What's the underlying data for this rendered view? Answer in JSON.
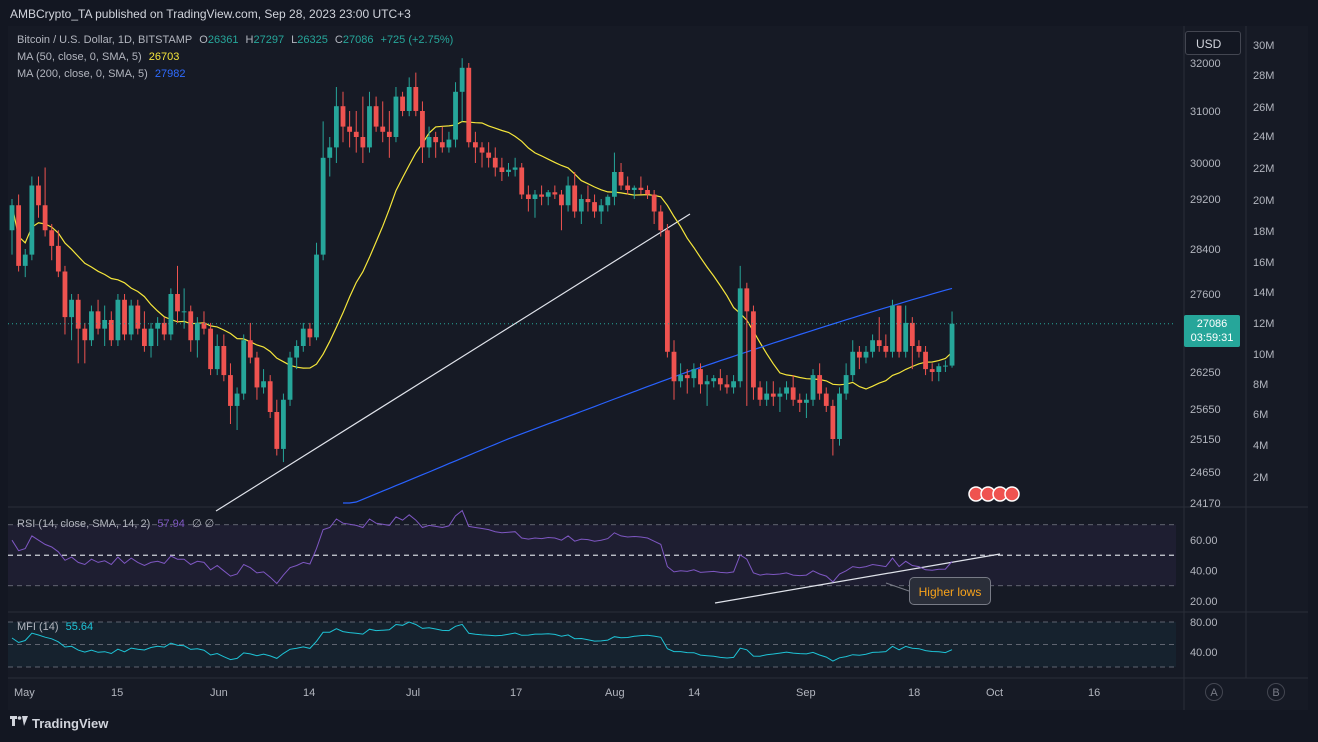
{
  "header": {
    "publisher": "AMBCrypto_TA published on TradingView.com, Sep 28, 2023 23:00 UTC+3"
  },
  "symbol": {
    "name": "Bitcoin / U.S. Dollar, 1D, BITSTAMP",
    "open_label": "O",
    "open": "26361",
    "high_label": "H",
    "high": "27297",
    "low_label": "L",
    "low": "26325",
    "close_label": "C",
    "close": "27086",
    "change": "+725 (+2.75%)"
  },
  "indicators": {
    "ma50": {
      "label": "MA (50, close, 0, SMA, 5)",
      "value": "26703",
      "color": "#f5e63b"
    },
    "ma200": {
      "label": "MA (200, close, 0, SMA, 5)",
      "value": "27982",
      "color": "#2962ff"
    },
    "rsi": {
      "label": "RSI (14, close, SMA, 14, 2)",
      "value": "57.94",
      "extra": "∅ ∅",
      "color": "#7e57c2"
    },
    "mfi": {
      "label": "MFI (14)",
      "value": "55.64",
      "color": "#1ec3d6"
    }
  },
  "currency_button": "USD",
  "price_tag": {
    "price": "27086",
    "countdown": "03:59:31"
  },
  "annotation": {
    "text": "Higher lows"
  },
  "axis_buttons": {
    "a": "A",
    "b": "B"
  },
  "brand": "TradingView",
  "colors": {
    "up": "#26a69a",
    "down": "#ef5350",
    "bg": "#161a25",
    "trendline": "#ffffff"
  },
  "chart_data": {
    "type": "candlestick",
    "price_axis": [
      "32000",
      "31000",
      "30000",
      "29200",
      "28400",
      "27600",
      "26250",
      "25650",
      "25150",
      "24650",
      "24170"
    ],
    "volume_axis": [
      "30M",
      "28M",
      "26M",
      "24M",
      "22M",
      "20M",
      "18M",
      "16M",
      "14M",
      "12M",
      "10M",
      "8M",
      "6M",
      "4M",
      "2M"
    ],
    "rsi_axis": [
      "60.00",
      "40.00",
      "20.00"
    ],
    "mfi_axis": [
      "80.00",
      "40.00"
    ],
    "x_labels": [
      "May",
      "15",
      "Jun",
      "14",
      "Jul",
      "17",
      "Aug",
      "14",
      "Sep",
      "18",
      "Oct",
      "16"
    ],
    "ohlc_series": [
      [
        28700,
        29200,
        28300,
        29100
      ],
      [
        29100,
        29300,
        28000,
        28100
      ],
      [
        28100,
        28400,
        27900,
        28300
      ],
      [
        28300,
        29700,
        28200,
        29500
      ],
      [
        29500,
        29700,
        28900,
        29100
      ],
      [
        29100,
        29900,
        28600,
        28700
      ],
      [
        28700,
        28800,
        28200,
        28450
      ],
      [
        28450,
        28700,
        27900,
        28000
      ],
      [
        28000,
        28100,
        26900,
        27200
      ],
      [
        27200,
        27600,
        26800,
        27500
      ],
      [
        27500,
        27600,
        26400,
        27000
      ],
      [
        27000,
        27100,
        26400,
        26800
      ],
      [
        26800,
        27400,
        26700,
        27300
      ],
      [
        27300,
        27500,
        26900,
        27000
      ],
      [
        27000,
        27400,
        26700,
        27150
      ],
      [
        27150,
        27300,
        26700,
        26800
      ],
      [
        26800,
        27600,
        26700,
        27500
      ],
      [
        27500,
        27600,
        26800,
        26900
      ],
      [
        26900,
        27500,
        26800,
        27400
      ],
      [
        27400,
        27500,
        26900,
        27000
      ],
      [
        27000,
        27300,
        26600,
        26700
      ],
      [
        26700,
        27100,
        26500,
        27000
      ],
      [
        27000,
        27200,
        26700,
        27100
      ],
      [
        27100,
        27200,
        26800,
        26900
      ],
      [
        26900,
        27700,
        26800,
        27600
      ],
      [
        27600,
        28100,
        27100,
        27300
      ],
      [
        27300,
        27700,
        27000,
        27300
      ],
      [
        27300,
        27400,
        26600,
        26800
      ],
      [
        26800,
        27200,
        26500,
        27100
      ],
      [
        27100,
        27300,
        26900,
        27000
      ],
      [
        27000,
        27100,
        26200,
        26300
      ],
      [
        26300,
        26900,
        26200,
        26700
      ],
      [
        26700,
        26900,
        26100,
        26200
      ],
      [
        26200,
        26400,
        25400,
        25700
      ],
      [
        25700,
        26000,
        25300,
        25900
      ],
      [
        25900,
        26900,
        25800,
        26800
      ],
      [
        26800,
        27100,
        26400,
        26500
      ],
      [
        26500,
        26600,
        25800,
        26000
      ],
      [
        26000,
        26300,
        25900,
        26100
      ],
      [
        26100,
        26200,
        25500,
        25600
      ],
      [
        25600,
        25800,
        24900,
        25000
      ],
      [
        25000,
        25900,
        24800,
        25800
      ],
      [
        25800,
        26600,
        25700,
        26500
      ],
      [
        26500,
        26800,
        26300,
        26700
      ],
      [
        26700,
        27100,
        26600,
        27000
      ],
      [
        27000,
        27100,
        26700,
        26850
      ],
      [
        26850,
        28500,
        26800,
        28300
      ],
      [
        28300,
        30800,
        28200,
        30100
      ],
      [
        30100,
        30500,
        29700,
        30300
      ],
      [
        30300,
        31500,
        30000,
        31100
      ],
      [
        31100,
        31400,
        30400,
        30700
      ],
      [
        30700,
        31000,
        30300,
        30600
      ],
      [
        30600,
        31000,
        30200,
        30500
      ],
      [
        30500,
        31300,
        30000,
        30300
      ],
      [
        30300,
        31400,
        30200,
        31100
      ],
      [
        31100,
        31300,
        30600,
        30700
      ],
      [
        30700,
        31200,
        30400,
        30600
      ],
      [
        30600,
        31000,
        30100,
        30500
      ],
      [
        30500,
        31500,
        30400,
        31300
      ],
      [
        31300,
        31400,
        30900,
        31000
      ],
      [
        31000,
        31700,
        30900,
        31500
      ],
      [
        31500,
        31800,
        30900,
        31000
      ],
      [
        31000,
        31200,
        30000,
        30300
      ],
      [
        30300,
        30700,
        30100,
        30500
      ],
      [
        30500,
        30600,
        30100,
        30400
      ],
      [
        30400,
        30700,
        30200,
        30300
      ],
      [
        30300,
        30600,
        30200,
        30450
      ],
      [
        30450,
        31600,
        30300,
        31400
      ],
      [
        31400,
        32100,
        30800,
        31900
      ],
      [
        31900,
        32000,
        30300,
        30400
      ],
      [
        30400,
        30600,
        30000,
        30300
      ],
      [
        30300,
        30400,
        29900,
        30200
      ],
      [
        30200,
        30400,
        29900,
        30100
      ],
      [
        30100,
        30300,
        29700,
        29900
      ],
      [
        29900,
        30100,
        29600,
        29800
      ],
      [
        29800,
        30000,
        29700,
        29850
      ],
      [
        29850,
        30100,
        29700,
        29900
      ],
      [
        29900,
        30000,
        29200,
        29300
      ],
      [
        29300,
        29500,
        29000,
        29200
      ],
      [
        29200,
        29400,
        28900,
        29300
      ],
      [
        29300,
        29500,
        29100,
        29250
      ],
      [
        29250,
        29400,
        29100,
        29350
      ],
      [
        29350,
        29500,
        29200,
        29300
      ],
      [
        29300,
        29400,
        28700,
        29100
      ],
      [
        29100,
        29700,
        29000,
        29500
      ],
      [
        29500,
        29800,
        28900,
        29000
      ],
      [
        29000,
        29300,
        28800,
        29200
      ],
      [
        29200,
        29500,
        29000,
        29150
      ],
      [
        29150,
        29300,
        28900,
        29000
      ],
      [
        29000,
        29200,
        28800,
        29100
      ],
      [
        29100,
        29300,
        29000,
        29250
      ],
      [
        29250,
        30200,
        29100,
        29800
      ],
      [
        29800,
        30000,
        29400,
        29500
      ],
      [
        29500,
        29700,
        29300,
        29400
      ],
      [
        29400,
        29500,
        29200,
        29450
      ],
      [
        29450,
        29700,
        29300,
        29400
      ],
      [
        29400,
        29500,
        29200,
        29300
      ],
      [
        29300,
        29400,
        28800,
        29000
      ],
      [
        29000,
        29100,
        28600,
        28700
      ],
      [
        28700,
        28800,
        26500,
        26600
      ],
      [
        26600,
        26800,
        25800,
        26100
      ],
      [
        26100,
        26400,
        26000,
        26200
      ],
      [
        26200,
        26300,
        25900,
        26150
      ],
      [
        26150,
        26400,
        26000,
        26300
      ],
      [
        26300,
        26400,
        25900,
        26050
      ],
      [
        26050,
        26200,
        25700,
        26100
      ],
      [
        26100,
        26200,
        26000,
        26150
      ],
      [
        26150,
        26300,
        25950,
        26050
      ],
      [
        26050,
        26200,
        25900,
        26000
      ],
      [
        26000,
        26200,
        25900,
        26100
      ],
      [
        26100,
        28100,
        26000,
        27700
      ],
      [
        27700,
        27800,
        25700,
        27300
      ],
      [
        27300,
        27400,
        25800,
        26000
      ],
      [
        26000,
        26100,
        25700,
        25800
      ],
      [
        25800,
        26100,
        25700,
        25900
      ],
      [
        25900,
        26100,
        25700,
        25850
      ],
      [
        25850,
        26000,
        25600,
        25900
      ],
      [
        25900,
        26100,
        25800,
        26000
      ],
      [
        26000,
        26200,
        25700,
        25800
      ],
      [
        25800,
        25900,
        25600,
        25750
      ],
      [
        25750,
        25900,
        25500,
        25800
      ],
      [
        25800,
        26300,
        25700,
        26200
      ],
      [
        26200,
        26400,
        25800,
        25900
      ],
      [
        25900,
        26000,
        25600,
        25700
      ],
      [
        25700,
        25800,
        24900,
        25150
      ],
      [
        25150,
        26000,
        25050,
        25900
      ],
      [
        25900,
        26400,
        25800,
        26200
      ],
      [
        26200,
        26800,
        26100,
        26600
      ],
      [
        26600,
        26700,
        26300,
        26500
      ],
      [
        26500,
        26700,
        26400,
        26600
      ],
      [
        26600,
        26900,
        26500,
        26800
      ],
      [
        26800,
        27200,
        26600,
        26700
      ],
      [
        26700,
        26900,
        26500,
        26600
      ],
      [
        26600,
        27500,
        26500,
        27400
      ],
      [
        27400,
        27400,
        26500,
        26600
      ],
      [
        26600,
        27400,
        26500,
        27100
      ],
      [
        27100,
        27200,
        26300,
        26700
      ],
      [
        26700,
        26800,
        26500,
        26600
      ],
      [
        26600,
        26700,
        26200,
        26300
      ],
      [
        26300,
        26400,
        26100,
        26250
      ],
      [
        26250,
        26400,
        26100,
        26350
      ],
      [
        26350,
        26450,
        26250,
        26361
      ],
      [
        26361,
        27297,
        26325,
        27086
      ]
    ]
  }
}
